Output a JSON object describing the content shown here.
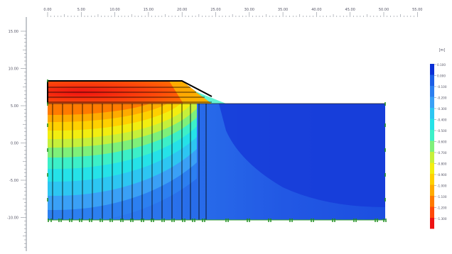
{
  "top_ruler": {
    "labels": [
      "0.00",
      "5.00",
      "10.00",
      "15.00",
      "20.00",
      "25.00",
      "30.00",
      "35.00",
      "40.00",
      "45.00",
      "50.00",
      "55.00"
    ]
  },
  "left_ruler": {
    "labels": [
      "15.00",
      "10.00",
      "5.00",
      "0.00",
      "-5.00",
      "-10.00"
    ]
  },
  "legend": {
    "unit": "[m]",
    "values": [
      "0.100",
      "0.000",
      "-0.100",
      "-0.200",
      "-0.300",
      "-0.400",
      "-0.500",
      "-0.600",
      "-0.700",
      "-0.800",
      "-0.900",
      "-1.000",
      "-1.100",
      "-1.200",
      "-1.300"
    ],
    "colors": [
      "#0a2fd6",
      "#1c5ee6",
      "#2c7ff0",
      "#3aa0f6",
      "#2dc6f2",
      "#25e2e8",
      "#3cf0c8",
      "#7ef07a",
      "#c6f03a",
      "#f2ee10",
      "#ffd000",
      "#ffab00",
      "#ff7a00",
      "#ff4a0a",
      "#ee1212"
    ]
  }
}
